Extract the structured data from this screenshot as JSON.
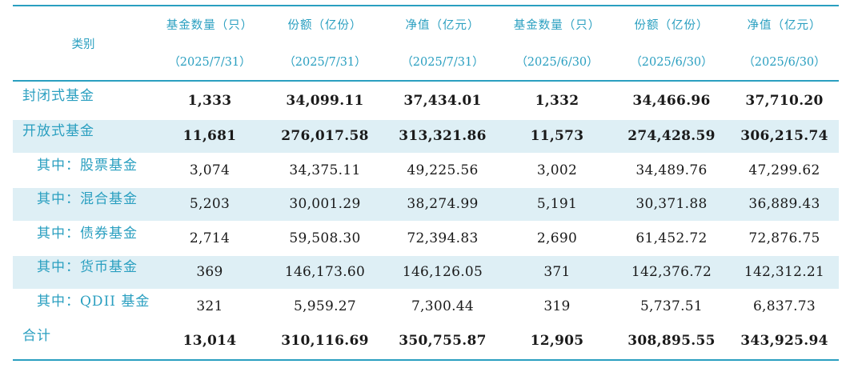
{
  "header": {
    "category_label": "类别",
    "columns": [
      {
        "label": "基金数量（只）",
        "date": "（2025/7/31）"
      },
      {
        "label": "份额（亿份）",
        "date": "（2025/7/31）"
      },
      {
        "label": "净值（亿元）",
        "date": "（2025/7/31）"
      },
      {
        "label": "基金数量（只）",
        "date": "（2025/6/30）"
      },
      {
        "label": "份额（亿份）",
        "date": "（2025/6/30）"
      },
      {
        "label": "净值（亿元）",
        "date": "（2025/6/30）"
      }
    ]
  },
  "rows": [
    {
      "label": "封闭式基金",
      "values": [
        "1,333",
        "34,099.11",
        "37,434.01",
        "1,332",
        "34,466.96",
        "37,710.20"
      ]
    },
    {
      "label": "开放式基金",
      "values": [
        "11,681",
        "276,017.58",
        "313,321.86",
        "11,573",
        "274,428.59",
        "306,215.74"
      ]
    },
    {
      "label": "其中：股票基金",
      "values": [
        "3,074",
        "34,375.11",
        "49,225.56",
        "3,002",
        "34,489.76",
        "47,299.62"
      ]
    },
    {
      "label": "其中：混合基金",
      "values": [
        "5,203",
        "30,001.29",
        "38,274.99",
        "5,191",
        "30,371.88",
        "36,889.43"
      ]
    },
    {
      "label": "其中：债券基金",
      "values": [
        "2,714",
        "59,508.30",
        "72,394.83",
        "2,690",
        "61,452.72",
        "72,876.75"
      ]
    },
    {
      "label": "其中：货币基金",
      "values": [
        "369",
        "146,173.60",
        "146,126.05",
        "371",
        "142,376.72",
        "142,312.21"
      ]
    },
    {
      "label": "其中：QDII 基金",
      "values": [
        "321",
        "5,959.27",
        "7,300.44",
        "319",
        "5,737.51",
        "6,837.73"
      ]
    },
    {
      "label": "合计",
      "values": [
        "13,014",
        "310,116.69",
        "350,755.87",
        "12,905",
        "308,895.55",
        "343,925.94"
      ]
    }
  ],
  "colors": {
    "accent": "#2a9fc0",
    "shade": "#deeff5"
  }
}
